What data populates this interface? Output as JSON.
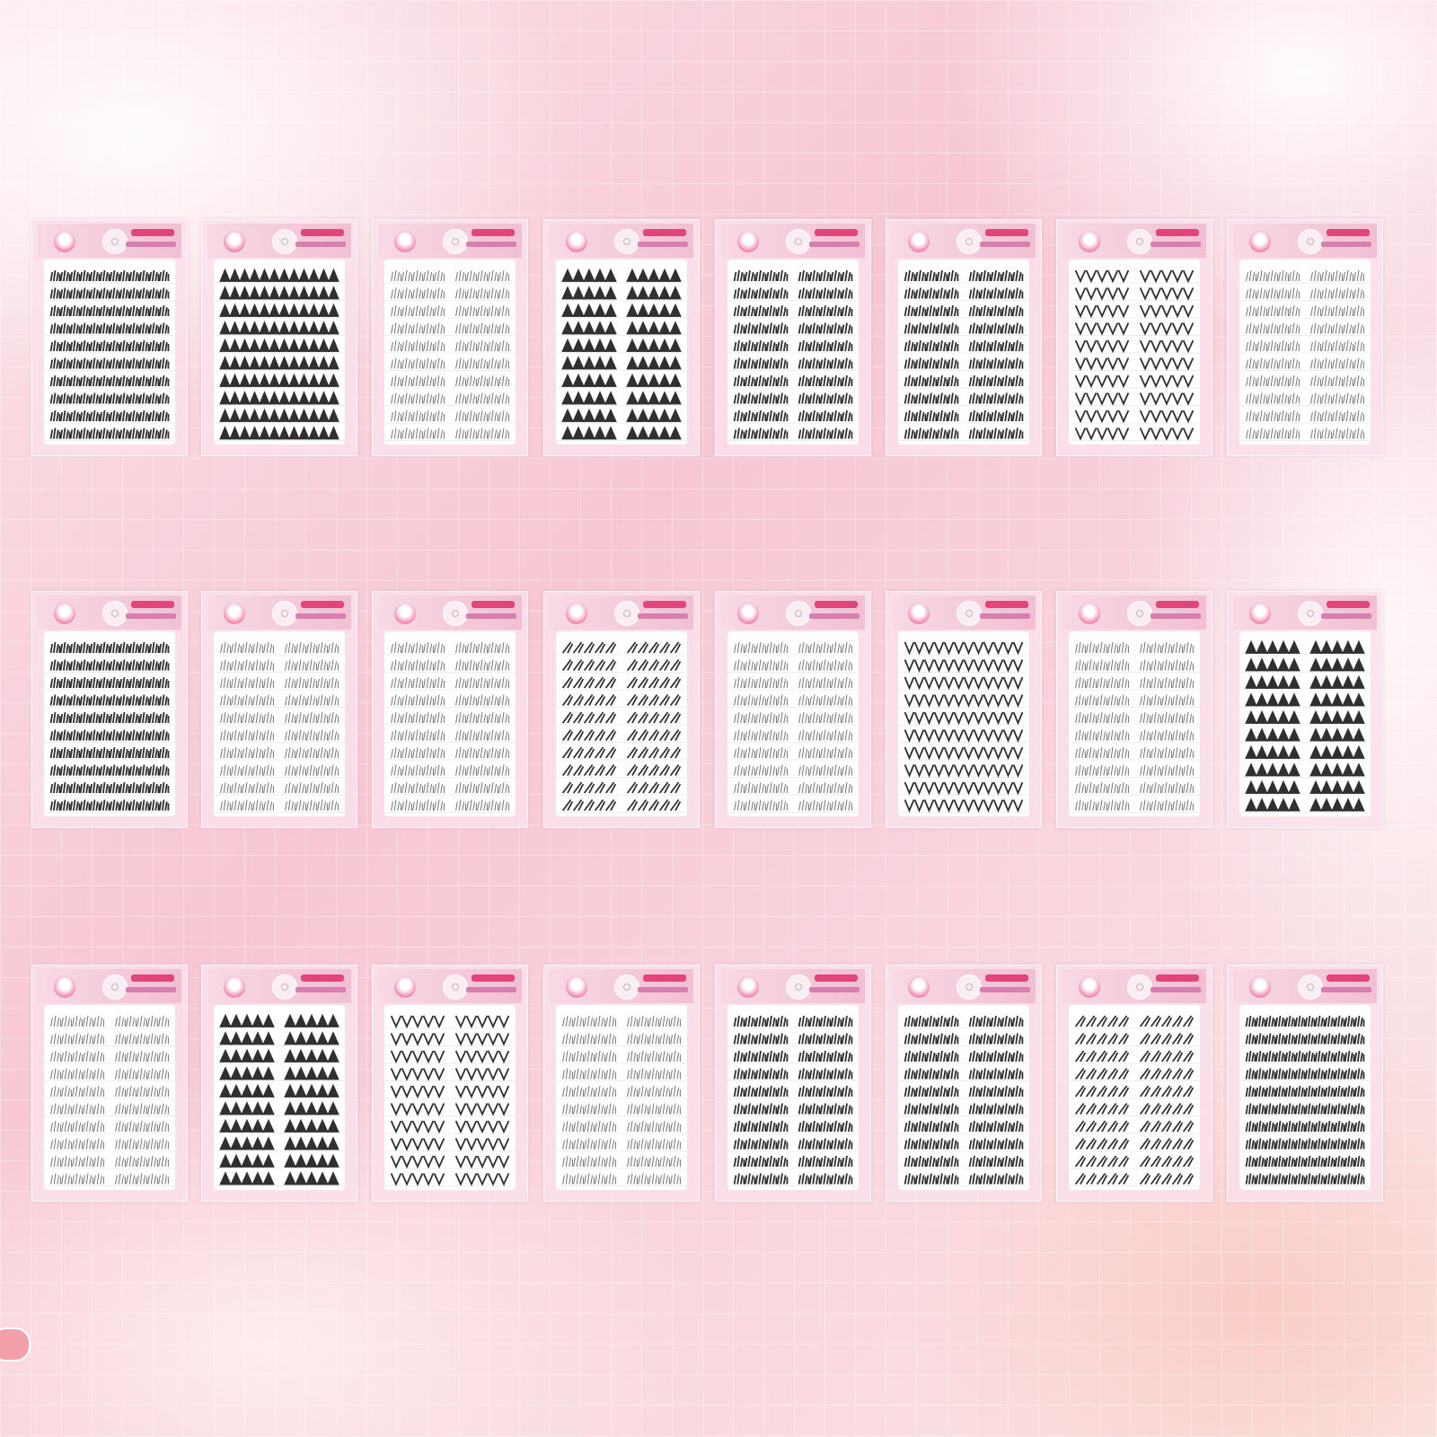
{
  "product": {
    "brand_logo_text": "",
    "card_count": 24
  },
  "colors": {
    "background": "#f7c8d4",
    "card": "#fae1eb",
    "lash": "#1a1a1a",
    "brand": "#e3447a"
  },
  "cards": [
    {
      "style": "fluffy",
      "groups": 1
    },
    {
      "style": "spike",
      "groups": 1
    },
    {
      "style": "wispy",
      "groups": 2
    },
    {
      "style": "spike",
      "groups": 2
    },
    {
      "style": "fluffy",
      "groups": 2
    },
    {
      "style": "wispy-long",
      "groups": 2
    },
    {
      "style": "v",
      "groups": 2
    },
    {
      "style": "thin",
      "groups": 2
    },
    {
      "style": "fluffy",
      "groups": 1
    },
    {
      "style": "thin",
      "groups": 2
    },
    {
      "style": "wispy",
      "groups": 2
    },
    {
      "style": "slant",
      "groups": 2
    },
    {
      "style": "thin",
      "groups": 2
    },
    {
      "style": "v",
      "groups": 1
    },
    {
      "style": "wispy",
      "groups": 2
    },
    {
      "style": "spike",
      "groups": 2
    },
    {
      "style": "wispy",
      "groups": 2
    },
    {
      "style": "spike",
      "groups": 2
    },
    {
      "style": "v",
      "groups": 2
    },
    {
      "style": "thin",
      "groups": 2
    },
    {
      "style": "mixed",
      "groups": 2
    },
    {
      "style": "mixed",
      "groups": 2
    },
    {
      "style": "slant",
      "groups": 2
    },
    {
      "style": "mixed",
      "groups": 1
    }
  ]
}
